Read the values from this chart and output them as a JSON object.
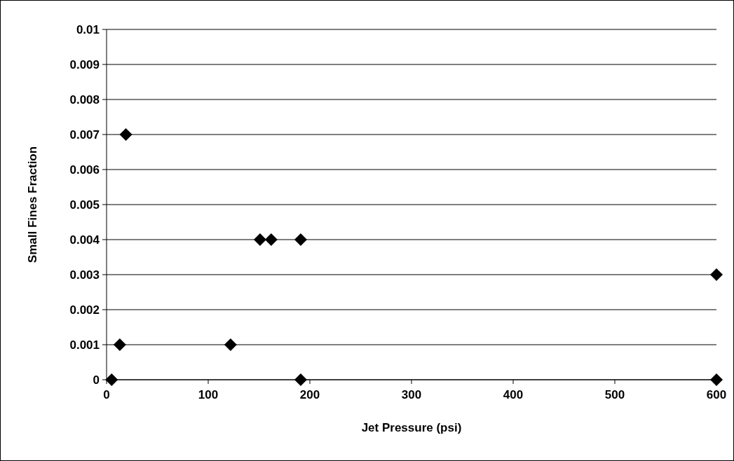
{
  "chart_data": {
    "type": "scatter",
    "xlabel": "Jet Pressure (psi)",
    "ylabel": "Small Fines Fraction",
    "x": [
      5,
      13,
      19,
      122,
      151,
      162,
      191,
      191,
      600,
      600
    ],
    "values": [
      0,
      0.001,
      0.007,
      0.001,
      0.004,
      0.004,
      0.004,
      0,
      0.003,
      0
    ],
    "color": "#000000",
    "marker": "diamond",
    "grid": "y",
    "xlim": [
      0,
      600
    ],
    "xticks": [
      0,
      100,
      200,
      300,
      400,
      500,
      600
    ],
    "ylim": [
      0,
      0.01
    ],
    "yticks": [
      0,
      0.001,
      0.002,
      0.003,
      0.004,
      0.005,
      0.006,
      0.007,
      0.008,
      0.009,
      0.01
    ]
  }
}
